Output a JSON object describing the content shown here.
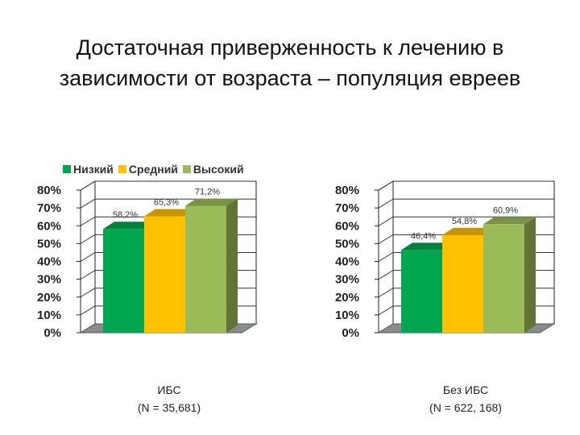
{
  "page": {
    "title_line1": "Достаточная приверженность к лечению в",
    "title_line2": "зависимости от возраста – популяция евреев"
  },
  "legend": [
    {
      "label": "Низкий",
      "color": "#00a650"
    },
    {
      "label": "Средний",
      "color": "#ffc000"
    },
    {
      "label": "Высокий",
      "color": "#9bbb59"
    }
  ],
  "chart_data": [
    {
      "type": "bar",
      "categories": [
        "Низкий",
        "Средний",
        "Высокий"
      ],
      "values": [
        58.2,
        65.3,
        71.2
      ],
      "value_labels": [
        "58,2%",
        "65,3%",
        "71,2%"
      ],
      "ylim": [
        0,
        80
      ],
      "yticks": [
        "0%",
        "10%",
        "20%",
        "30%",
        "40%",
        "50%",
        "60%",
        "70%",
        "80%"
      ],
      "grid": true,
      "caption_line1": "ИБС",
      "caption_line2": "(N = 35,681)"
    },
    {
      "type": "bar",
      "categories": [
        "Низкий",
        "Средний",
        "Высокий"
      ],
      "values": [
        46.4,
        54.8,
        60.9
      ],
      "value_labels": [
        "46,4%",
        "54,8%",
        "60,9%"
      ],
      "ylim": [
        0,
        80
      ],
      "yticks": [
        "0%",
        "10%",
        "20%",
        "30%",
        "40%",
        "50%",
        "60%",
        "70%",
        "80%"
      ],
      "grid": true,
      "caption_line1": "Без ИБС",
      "caption_line2": "(N = 622, 168)"
    }
  ]
}
